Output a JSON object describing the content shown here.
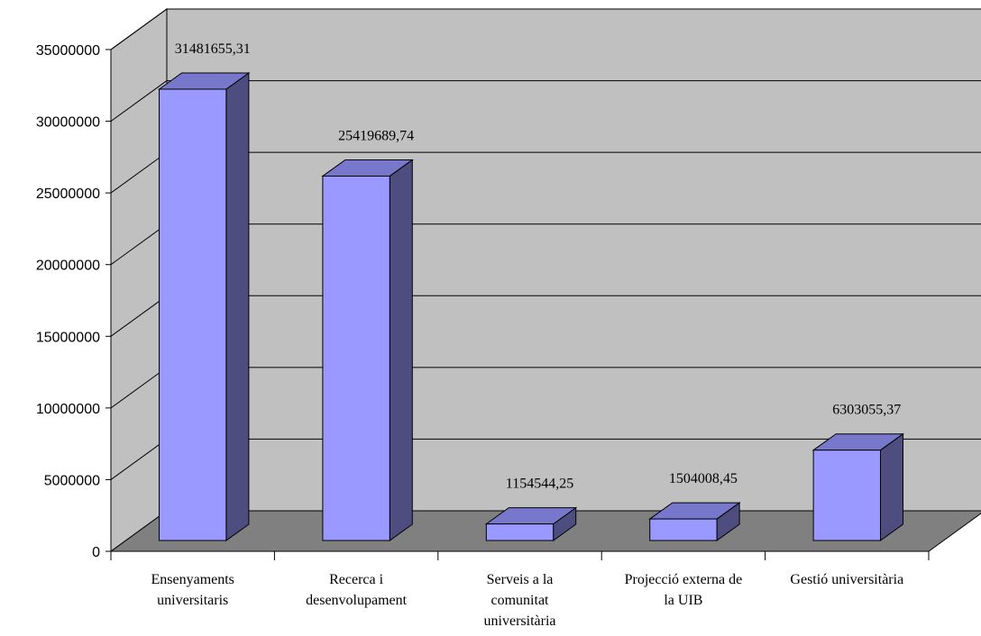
{
  "chart_data": {
    "type": "bar",
    "title": "",
    "xlabel": "",
    "ylabel": "",
    "categories": [
      [
        "Ensenyaments",
        "universitaris"
      ],
      [
        "Recerca i",
        "desenvolupament"
      ],
      [
        "Serveis a la",
        "comunitat",
        "universitària"
      ],
      [
        "Projecció externa de",
        "la UIB"
      ],
      [
        "Gestió universitària"
      ]
    ],
    "values": [
      31481655.31,
      25419689.74,
      1154544.25,
      1504008.45,
      6303055.37
    ],
    "data_labels": [
      "31481655,31",
      "25419689,74",
      "1154544,25",
      "1504008,45",
      "6303055,37"
    ],
    "yticks": [
      "0",
      "5000000",
      "10000000",
      "15000000",
      "20000000",
      "25000000",
      "30000000",
      "35000000"
    ],
    "ylim": [
      0,
      35000000
    ],
    "grid": true,
    "three_d": true,
    "colors": {
      "bar_front": "#9999ff",
      "bar_top": "#7777cc",
      "bar_side": "#4d4d80",
      "back_wall": "#c0c0c0",
      "side_wall": "#c0c0c0",
      "floor": "#808080",
      "gridline": "#000000"
    }
  }
}
